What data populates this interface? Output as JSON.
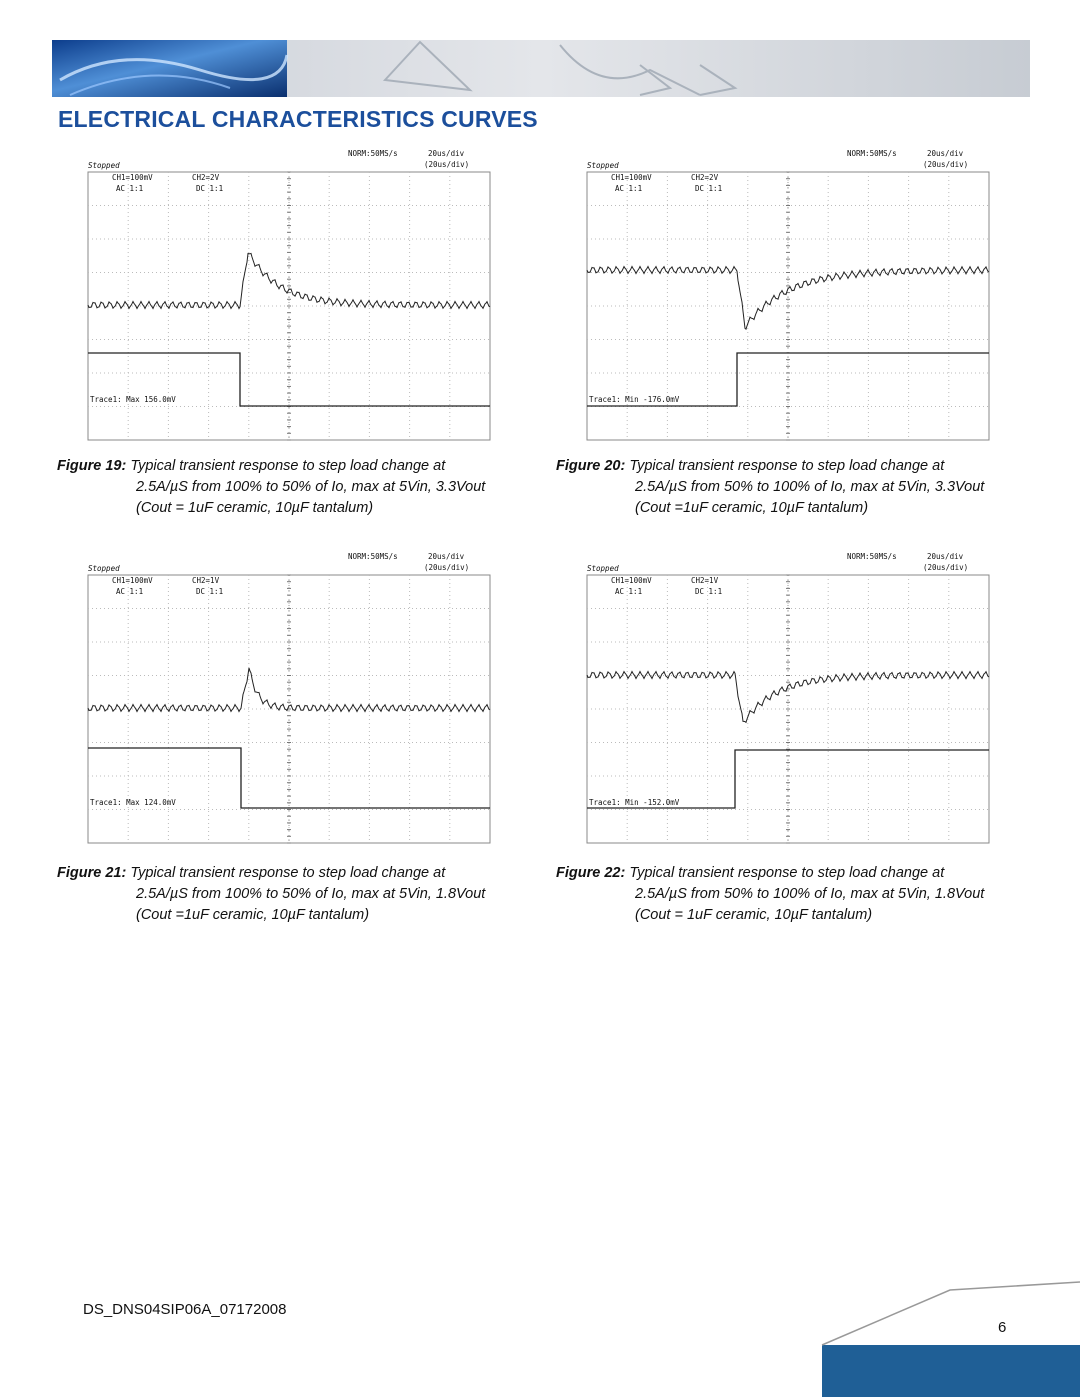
{
  "header": {
    "title": "ELECTRICAL CHARACTERISTICS CURVES"
  },
  "figures": [
    {
      "scope": {
        "rate": "NORM:50MS/s",
        "timebase": "20us/div",
        "timebase_sub": "(20us/div)",
        "status": "Stopped",
        "ch1": "CH1=100mV",
        "ch1_coupling": "AC  1:1",
        "ch2": "CH2=2V",
        "ch2_coupling": "DC  1:1",
        "trace": "Trace1: Max   156.0mV"
      },
      "label": "Figure 19:",
      "caption": [
        "Typical transient response to step load change at",
        "2.5A/µS from 100% to 50% of Io, max at 5Vin, 3.3Vout",
        "(Cout = 1uF ceramic, 10µF tantalum)"
      ]
    },
    {
      "scope": {
        "rate": "NORM:50MS/s",
        "timebase": "20us/div",
        "timebase_sub": "(20us/div)",
        "status": "Stopped",
        "ch1": "CH1=100mV",
        "ch1_coupling": "AC  1:1",
        "ch2": "CH2=2V",
        "ch2_coupling": "DC  1:1",
        "trace": "Trace1: Min   -176.0mV"
      },
      "label": "Figure 20:",
      "caption": [
        "Typical transient response to step load change at",
        "2.5A/µS from 50% to 100% of Io, max at 5Vin, 3.3Vout",
        "(Cout =1uF ceramic, 10µF tantalum)"
      ]
    },
    {
      "scope": {
        "rate": "NORM:50MS/s",
        "timebase": "20us/div",
        "timebase_sub": "(20us/div)",
        "status": "Stopped",
        "ch1": "CH1=100mV",
        "ch1_coupling": "AC  1:1",
        "ch2": "CH2=1V",
        "ch2_coupling": "DC  1:1",
        "trace": "Trace1: Max   124.0mV"
      },
      "label": "Figure 21:",
      "caption": [
        "Typical transient response to step load change at",
        "2.5A/µS from 100% to 50% of Io, max at 5Vin, 1.8Vout",
        "(Cout =1uF ceramic, 10µF tantalum)"
      ]
    },
    {
      "scope": {
        "rate": "NORM:50MS/s",
        "timebase": "20us/div",
        "timebase_sub": "(20us/div)",
        "status": "Stopped",
        "ch1": "CH1=100mV",
        "ch1_coupling": "AC  1:1",
        "ch2": "CH2=1V",
        "ch2_coupling": "DC  1:1",
        "trace": "Trace1: Min   -152.0mV"
      },
      "label": "Figure 22:",
      "caption": [
        "Typical transient response to step load change at",
        "2.5A/µS from 50% to 100% of Io, max at 5Vin, 1.8Vout",
        "(Cout = 1uF ceramic, 10µF tantalum)"
      ]
    }
  ],
  "footer": {
    "doc_id": "DS_DNS04SIP06A_07172008",
    "page": "6"
  }
}
